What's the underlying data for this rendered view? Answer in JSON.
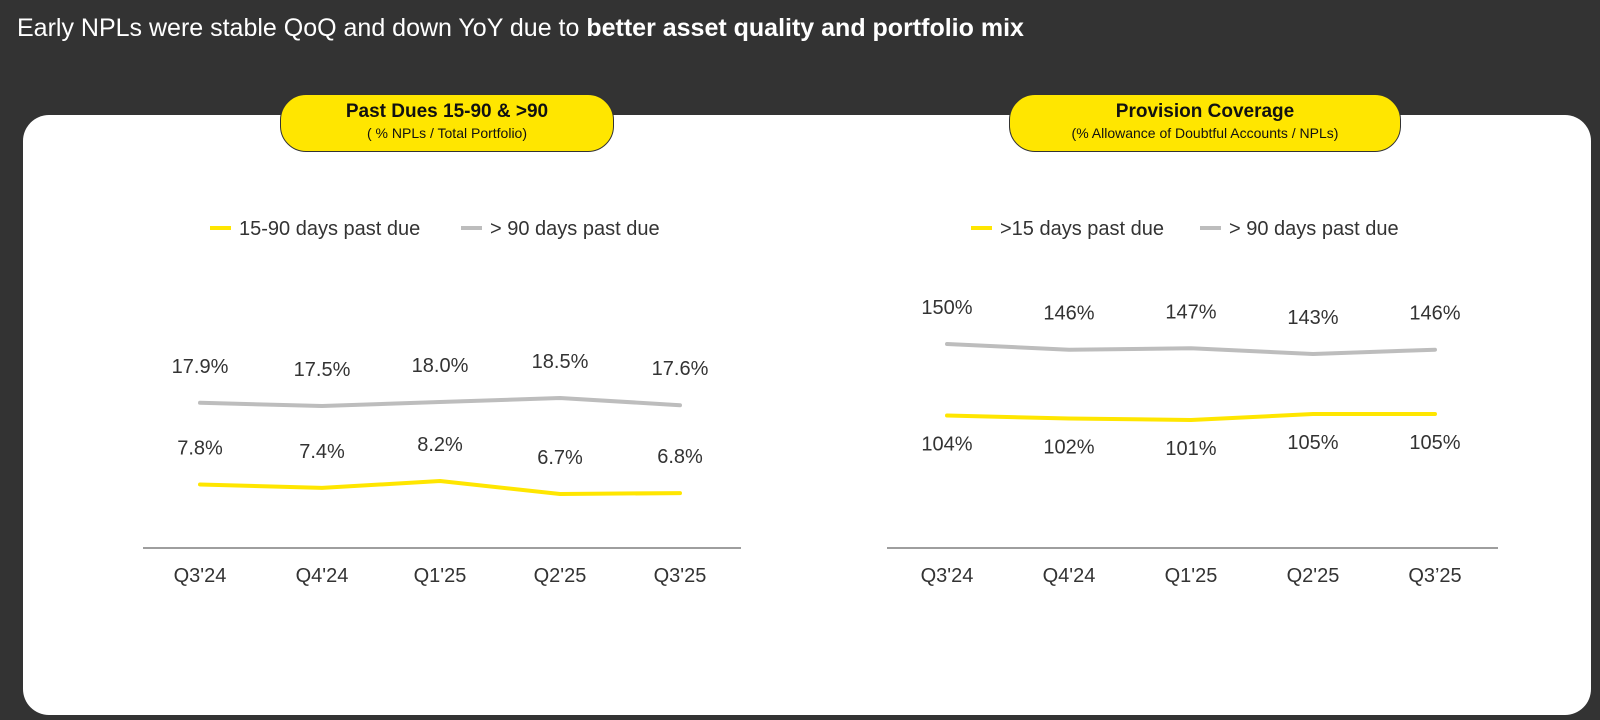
{
  "headline": {
    "regular": "Early NPLs were stable QoQ and down YoY due to ",
    "bold": "better asset quality and portfolio mix"
  },
  "colors": {
    "yellow": "#ffe600",
    "gray": "#bdbdbd",
    "text": "#333333",
    "background": "#333333"
  },
  "chart_data": [
    {
      "type": "line",
      "title": "Past Dues 15-90 & >90",
      "subtitle": "( % NPLs / Total Portfolio)",
      "categories": [
        "Q3'24",
        "Q4'24",
        "Q1'25",
        "Q2'25",
        "Q3'25"
      ],
      "series": [
        {
          "name": "15-90 days past due",
          "color": "#ffe600",
          "values": [
            7.8,
            7.4,
            8.2,
            6.7,
            6.8
          ],
          "labels": [
            "7.8%",
            "7.4%",
            "8.2%",
            "6.7%",
            "6.8%"
          ]
        },
        {
          "name": "> 90 days past due",
          "color": "#bdbdbd",
          "values": [
            17.9,
            17.5,
            18.0,
            18.5,
            17.6
          ],
          "labels": [
            "17.9%",
            "17.5%",
            "18.0%",
            "18.5%",
            "17.6%"
          ]
        }
      ],
      "legend": "top-center",
      "grid": false
    },
    {
      "type": "line",
      "title": "Provision Coverage",
      "subtitle": "(% Allowance of Doubtful Accounts / NPLs)",
      "categories": [
        "Q3'24",
        "Q4'24",
        "Q1'25",
        "Q2'25",
        "Q3’25"
      ],
      "series": [
        {
          "name": ">15 days past due",
          "color": "#ffe600",
          "values": [
            104,
            102,
            101,
            105,
            105
          ],
          "labels": [
            "104%",
            "102%",
            "101%",
            "105%",
            "105%"
          ]
        },
        {
          "name": "> 90 days past due",
          "color": "#bdbdbd",
          "values": [
            150,
            146,
            147,
            143,
            146
          ],
          "labels": [
            "150%",
            "146%",
            "147%",
            "143%",
            "146%"
          ]
        }
      ],
      "legend": "top-center",
      "grid": false
    }
  ]
}
